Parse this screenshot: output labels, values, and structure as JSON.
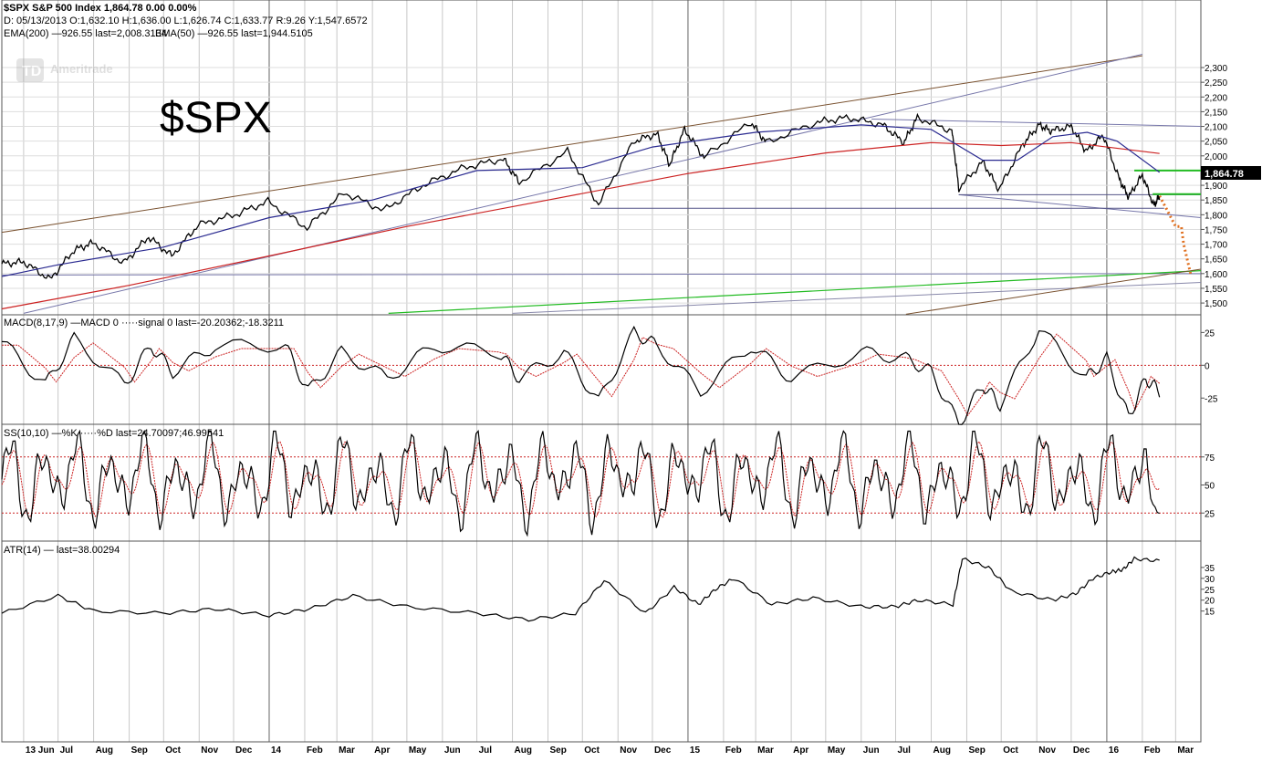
{
  "header": {
    "symbol_line": "$SPX S&P 500 Index   1,864.78   0.00   0.00%",
    "ohlc_line": "D: 05/13/2013  O:1,632.10  H:1,636.00  L:1,626.74  C:1,633.77      R:9.26      Y:1,547.6572",
    "ema200_label": "EMA(200) —926.55 last=2,008.3134",
    "ema50_label": "EMA(50) —926.55 last=1,944.5105",
    "watermark": "Ameritrade",
    "big_title": "$SPX",
    "last_price_box": "1,864.78"
  },
  "colors": {
    "ema200": "#cc2222",
    "ema50": "#2a2a90",
    "green_line": "#22bb22",
    "brown_line": "#7a5230",
    "forecast": "#e07020",
    "grid": "#c8c8c8",
    "price": "#000000"
  },
  "chart_data": [
    {
      "type": "line",
      "name_panel": "price",
      "ylim": [
        1460,
        2390
      ],
      "yticks": [
        1500,
        1550,
        1600,
        1650,
        1700,
        1750,
        1800,
        1850,
        1900,
        1950,
        2000,
        2050,
        2100,
        2150,
        2200,
        2250,
        2300
      ],
      "ytick_labels": [
        "1,500",
        "1,550",
        "1,600",
        "1,650",
        "1,700",
        "1,750",
        "1,800",
        "1,850",
        "1,900",
        "1,950",
        "2,000",
        "2,050",
        "2,100",
        "2,150",
        "2,200",
        "2,250",
        "2,300"
      ],
      "months": [
        "2013-06",
        "2013-07",
        "2013-08",
        "2013-09",
        "2013-10",
        "2013-11",
        "2013-12",
        "2014-01",
        "2014-02",
        "2014-03",
        "2014-04",
        "2014-05",
        "2014-06",
        "2014-07",
        "2014-08",
        "2014-09",
        "2014-10",
        "2014-11",
        "2014-12",
        "2015-01",
        "2015-02",
        "2015-03",
        "2015-04",
        "2015-05",
        "2015-06",
        "2015-07",
        "2015-08",
        "2015-09",
        "2015-10",
        "2015-11",
        "2015-12",
        "2016-01",
        "2016-02",
        "2016-03"
      ],
      "month_labels": [
        "13 Jun",
        "Jul",
        "Aug",
        "Sep",
        "Oct",
        "Nov",
        "Dec",
        "14",
        "Feb",
        "Mar",
        "Apr",
        "May",
        "Jun",
        "Jul",
        "Aug",
        "Sep",
        "Oct",
        "Nov",
        "Dec",
        "15",
        "Feb",
        "Mar",
        "Apr",
        "May",
        "Jun",
        "Jul",
        "Aug",
        "Sep",
        "Oct",
        "Nov",
        "Dec",
        "16",
        "Feb",
        "Mar"
      ],
      "close_x": [
        "2013-05-13",
        "2013-06-01",
        "2013-06-24",
        "2013-07-15",
        "2013-08-01",
        "2013-08-27",
        "2013-09-18",
        "2013-10-08",
        "2013-10-31",
        "2013-12-02",
        "2013-12-31",
        "2014-02-03",
        "2014-03-07",
        "2014-04-11",
        "2014-05-15",
        "2014-06-20",
        "2014-07-24",
        "2014-08-07",
        "2014-09-18",
        "2014-10-15",
        "2014-11-15",
        "2014-12-05",
        "2014-12-16",
        "2014-12-29",
        "2015-01-15",
        "2015-02-25",
        "2015-03-10",
        "2015-04-24",
        "2015-05-21",
        "2015-06-20",
        "2015-07-08",
        "2015-07-20",
        "2015-08-19",
        "2015-08-25",
        "2015-09-15",
        "2015-09-29",
        "2015-10-20",
        "2015-11-03",
        "2015-11-13",
        "2015-12-01",
        "2015-12-14",
        "2015-12-29",
        "2016-01-12",
        "2016-01-20",
        "2016-02-01",
        "2016-02-11",
        "2016-02-16"
      ],
      "close_y": [
        1633,
        1640,
        1580,
        1680,
        1705,
        1635,
        1725,
        1660,
        1765,
        1800,
        1845,
        1755,
        1875,
        1815,
        1900,
        1960,
        1990,
        1910,
        2015,
        1835,
        2050,
        2075,
        1970,
        2090,
        1995,
        2115,
        2045,
        2115,
        2130,
        2105,
        2045,
        2130,
        2085,
        1890,
        1980,
        1885,
        2040,
        2105,
        2085,
        2100,
        2015,
        2070,
        1920,
        1860,
        1935,
        1830,
        1864
      ],
      "ema200_x": [
        "2013-05-13",
        "2013-09-01",
        "2014-01-01",
        "2014-05-01",
        "2014-09-01",
        "2015-01-01",
        "2015-05-01",
        "2015-08-01",
        "2015-10-01",
        "2015-12-01",
        "2016-02-16"
      ],
      "ema200_y": [
        1480,
        1560,
        1660,
        1760,
        1850,
        1940,
        2010,
        2045,
        2035,
        2045,
        2008
      ],
      "ema50_x": [
        "2013-05-13",
        "2013-07-01",
        "2013-10-01",
        "2014-01-01",
        "2014-04-01",
        "2014-07-01",
        "2014-10-01",
        "2014-12-01",
        "2015-03-01",
        "2015-06-01",
        "2015-08-01",
        "2015-09-15",
        "2015-10-15",
        "2015-11-15",
        "2015-12-15",
        "2016-01-10",
        "2016-02-16"
      ],
      "ema50_y": [
        1590,
        1630,
        1690,
        1790,
        1850,
        1950,
        1960,
        2030,
        2080,
        2105,
        2090,
        1985,
        1985,
        2065,
        2080,
        2050,
        1944
      ],
      "ylabel": "",
      "xlabel": ""
    },
    {
      "type": "line",
      "name_panel": "macd",
      "label": "MACD(8,17,9) —MACD 0 ·····signal 0 last=-20.20362;-18.3211",
      "ylim": [
        -45,
        35
      ],
      "yticks": [
        25,
        0,
        -25
      ],
      "ytick_labels": [
        "25",
        "0",
        "-25"
      ],
      "x": [
        "2013-05-13",
        "2013-06-20",
        "2013-07-15",
        "2013-08-28",
        "2013-09-20",
        "2013-10-09",
        "2013-11-15",
        "2014-01-15",
        "2014-02-04",
        "2014-03-05",
        "2014-04-14",
        "2014-05-25",
        "2014-07-20",
        "2014-08-07",
        "2014-09-15",
        "2014-10-15",
        "2014-11-15",
        "2014-12-05",
        "2015-01-12",
        "2015-02-25",
        "2015-04-01",
        "2015-06-01",
        "2015-07-10",
        "2015-08-01",
        "2015-08-25",
        "2015-09-15",
        "2015-09-30",
        "2015-11-03",
        "2015-12-14",
        "2016-01-01",
        "2016-01-20",
        "2016-02-04",
        "2016-02-16"
      ],
      "y": [
        18,
        -15,
        20,
        -15,
        15,
        -5,
        15,
        15,
        -20,
        10,
        -10,
        15,
        10,
        -10,
        10,
        -28,
        25,
        15,
        -20,
        15,
        -10,
        10,
        5,
        -5,
        -45,
        -15,
        -30,
        28,
        -10,
        5,
        -40,
        -10,
        -20
      ]
    },
    {
      "type": "line",
      "name_panel": "stochastic",
      "label": "SS(10,10) —%K ·····%D last=24.70097;46.99541",
      "ylim": [
        0,
        100
      ],
      "yticks": [
        75,
        50,
        25
      ],
      "ytick_labels": [
        "75",
        "50",
        "25"
      ],
      "k_last": 24.70097,
      "d_last": 46.99541
    },
    {
      "type": "line",
      "name_panel": "atr",
      "label": "ATR(14) — last=38.00294",
      "ylim": [
        -45,
        45
      ],
      "yticks": [
        35,
        30,
        25,
        20,
        15
      ],
      "ytick_labels": [
        "35",
        "30",
        "25",
        "20",
        "15"
      ],
      "x": [
        "2013-05-13",
        "2013-07-01",
        "2013-08-01",
        "2013-10-01",
        "2013-11-15",
        "2014-01-01",
        "2014-02-05",
        "2014-03-15",
        "2014-05-01",
        "2014-07-01",
        "2014-08-15",
        "2014-09-25",
        "2014-10-20",
        "2014-11-25",
        "2014-12-20",
        "2015-01-10",
        "2015-01-25",
        "2015-02-10",
        "2015-03-15",
        "2015-04-20",
        "2015-06-01",
        "2015-07-01",
        "2015-07-20",
        "2015-08-20",
        "2015-08-28",
        "2015-09-20",
        "2015-10-10",
        "2015-11-15",
        "2015-12-05",
        "2015-12-20",
        "2016-01-05",
        "2016-01-15",
        "2016-01-25",
        "2016-02-16"
      ],
      "y": [
        14,
        22,
        15,
        14,
        16,
        13,
        16,
        22,
        17,
        14,
        11,
        14,
        29,
        14,
        26,
        18,
        25,
        30,
        18,
        21,
        17,
        17,
        20,
        18,
        39,
        35,
        24,
        20,
        23,
        30,
        33,
        34,
        39,
        38
      ]
    }
  ]
}
